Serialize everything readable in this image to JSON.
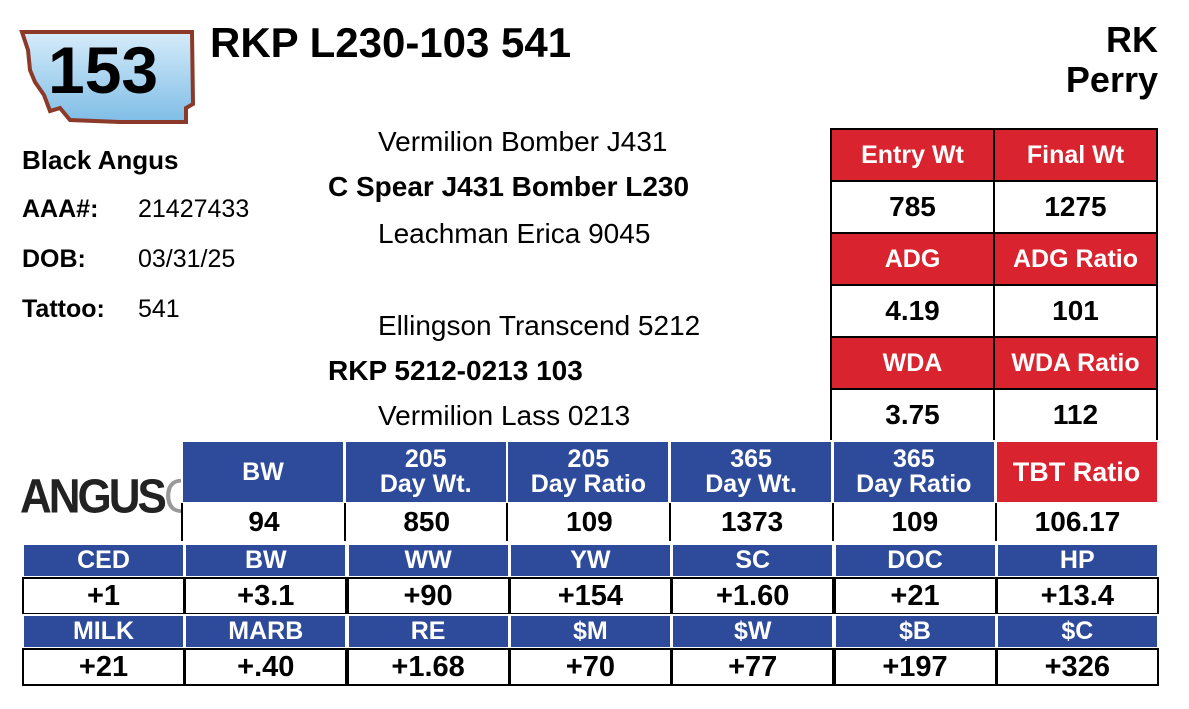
{
  "header": {
    "lot": "153",
    "name": "RKP L230-103 541",
    "owner": [
      "RK",
      "Perry"
    ]
  },
  "info": {
    "breed": "Black Angus",
    "fields": [
      {
        "label": "AAA#:",
        "value": "21427433"
      },
      {
        "label": "DOB:",
        "value": "03/31/25"
      },
      {
        "label": "Tattoo:",
        "value": "541"
      }
    ]
  },
  "pedigree": {
    "sire_sire": "Vermilion Bomber J431",
    "sire": "C Spear J431 Bomber L230",
    "sire_dam": "Leachman Erica 9045",
    "dam_sire": "Ellingson Transcend 5212",
    "dam": "RKP 5212-0213 103",
    "dam_dam": "Vermilion Lass 0213"
  },
  "performance": [
    [
      {
        "label": "Entry Wt",
        "value": 785
      },
      {
        "label": "Final Wt",
        "value": 1275
      }
    ],
    [
      {
        "label": "ADG",
        "value": 4.19
      },
      {
        "label": "ADG Ratio",
        "value": 101
      }
    ],
    [
      {
        "label": "WDA",
        "value": 3.75
      },
      {
        "label": "WDA Ratio",
        "value": 112
      }
    ]
  ],
  "logo": {
    "main": "ANGUS",
    "suffix": "GS"
  },
  "weights": [
    {
      "label": "BW",
      "value": 94
    },
    {
      "label": "205\nDay Wt.",
      "value": 850
    },
    {
      "label": "205\nDay Ratio",
      "value": 109
    },
    {
      "label": "365\nDay Wt.",
      "value": 1373
    },
    {
      "label": "365\nDay Ratio",
      "value": 109
    },
    {
      "label": "TBT Ratio",
      "value": 106.17
    }
  ],
  "epds": [
    {
      "labels": [
        "CED",
        "BW",
        "WW",
        "YW",
        "SC",
        "DOC",
        "HP"
      ],
      "values": [
        "+1",
        "+3.1",
        "+90",
        "+154",
        "+1.60",
        "+21",
        "+13.4"
      ]
    },
    {
      "labels": [
        "MILK",
        "MARB",
        "RE",
        "$M",
        "$W",
        "$B",
        "$C"
      ],
      "values": [
        "+21",
        "+.40",
        "+1.68",
        "+70",
        "+77",
        "+197",
        "+326"
      ]
    }
  ]
}
